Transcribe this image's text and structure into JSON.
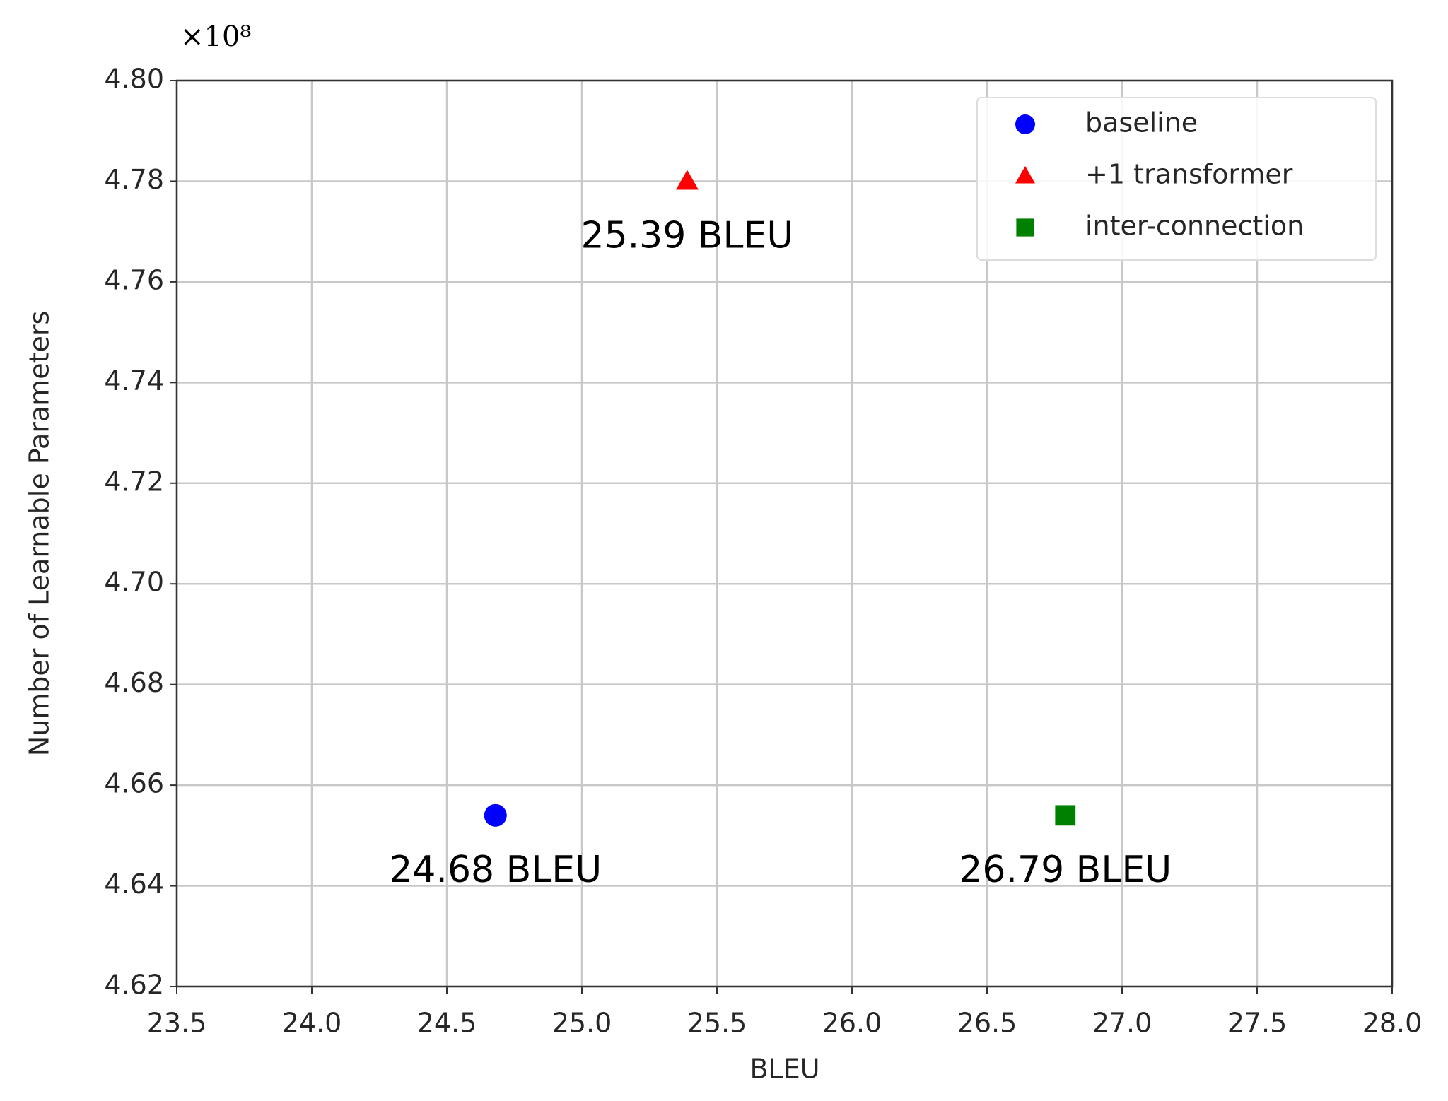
{
  "chart_data": {
    "type": "scatter",
    "x_label": "BLEU",
    "y_label": "Number of Learnable Parameters",
    "y_scale_text": "×10⁸",
    "xlim": [
      23.5,
      28.0
    ],
    "xticks": [
      23.5,
      {
        "value": 24.0,
        "label": "24.0"
      },
      24.5,
      {
        "value": 25.0,
        "label": "25.0"
      },
      25.5,
      {
        "value": 26.0,
        "label": "26.0"
      },
      26.5,
      {
        "value": 27.0,
        "label": "27.0"
      },
      27.5,
      {
        "value": 28.0,
        "label": "28.0"
      }
    ],
    "ylim": [
      4.62,
      4.8
    ],
    "yticks": [
      {
        "value": 4.62,
        "label": "4.62"
      },
      4.64,
      4.66,
      4.68,
      {
        "value": 4.7,
        "label": "4.70"
      },
      4.72,
      4.74,
      4.76,
      4.78,
      {
        "value": 4.8,
        "label": "4.80"
      }
    ],
    "grid": true,
    "legend": "upper right",
    "series": [
      {
        "name": "baseline",
        "color": "#0000ff",
        "marker": "circle",
        "x": [
          24.68
        ],
        "values": [
          4.654
        ],
        "value_labels": [
          "24.68 BLEU"
        ]
      },
      {
        "name": "+1 transformer",
        "color": "#ff0000",
        "marker": "triangle",
        "x": [
          25.39
        ],
        "values": [
          4.78
        ],
        "value_labels": [
          "25.39 BLEU"
        ]
      },
      {
        "name": "inter-connection",
        "color": "#008000",
        "marker": "square",
        "x": [
          26.79
        ],
        "values": [
          4.654
        ],
        "value_labels": [
          "26.79 BLEU"
        ]
      }
    ]
  }
}
